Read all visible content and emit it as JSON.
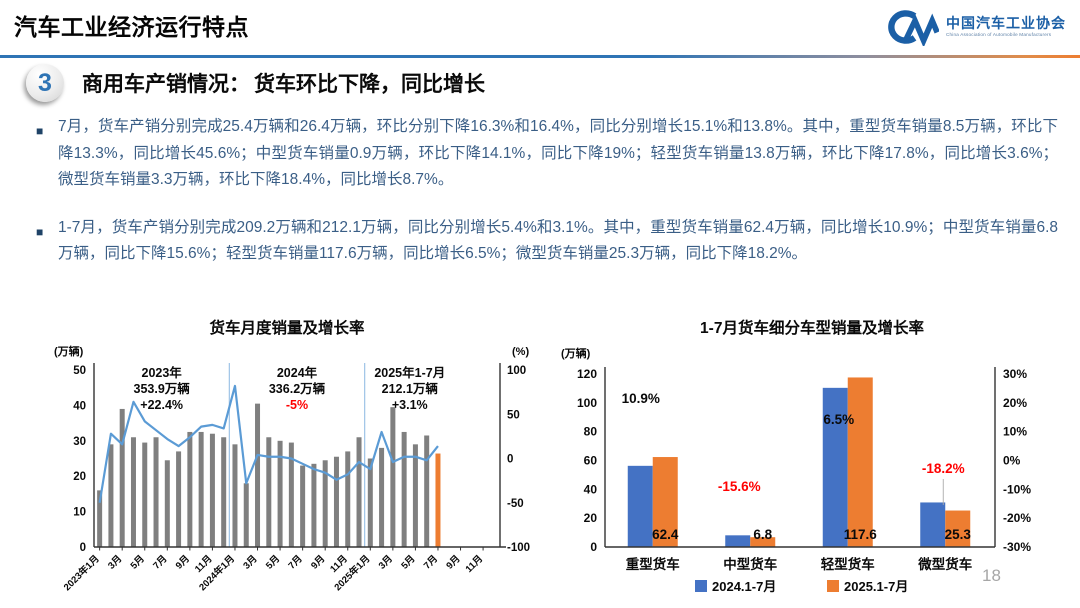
{
  "header": {
    "title": "汽车工业经济运行特点",
    "logo": {
      "cn": "中国汽车工业协会",
      "en": "China Association of Automobile Manufacturers"
    }
  },
  "section": {
    "number": "3",
    "heading": "商用车产销情况：",
    "subheading": "货车环比下降，同比增长"
  },
  "bullets": [
    "7月，货车产销分别完成25.4万辆和26.4万辆，环比分别下降16.3%和16.4%，同比分别增长15.1%和13.8%。其中，重型货车销量8.5万辆，环比下降13.3%，同比增长45.6%；中型货车销量0.9万辆，环比下降14.1%，同比下降19%；轻型货车销量13.8万辆，环比下降17.8%，同比增长3.6%；微型货车销量3.3万辆，环比下降18.4%，同比增长8.7%。",
    "1-7月，货车产销分别完成209.2万辆和212.1万辆，同比分别增长5.4%和3.1%。其中，重型货车销量62.4万辆，同比增长10.9%；中型货车销量6.8万辆，同比下降15.6%；轻型货车销量117.6万辆，同比增长6.5%；微型货车销量25.3万辆，同比下降18.2%。"
  ],
  "page_number": "18",
  "colors": {
    "accent_blue": "#2E74B5",
    "body_text": "#3A5E86",
    "bar_gray": "#7F7F7F",
    "line_blue": "#5B9BD5",
    "bar_blue": "#4472C4",
    "bar_orange": "#ED7D31",
    "negative_red": "#FF0000",
    "divider_blue": "#9DC3E6"
  },
  "chart_data": [
    {
      "type": "bar+line",
      "title": "货车月度销量及增长率",
      "left_axis_label": "(万辆)",
      "right_axis_label": "(%)",
      "left_ylim": [
        0,
        50
      ],
      "left_ticks": [
        0,
        10,
        20,
        30,
        40,
        50
      ],
      "right_ylim": [
        -100,
        100
      ],
      "right_ticks": [
        100,
        50,
        0,
        -50,
        -100
      ],
      "x_tick_labels": [
        "2023年1月",
        "3月",
        "5月",
        "7月",
        "9月",
        "11月",
        "2024年1月",
        "3月",
        "5月",
        "7月",
        "9月",
        "11月",
        "2025年1月",
        "3月",
        "5月",
        "7月",
        "9月",
        "11月"
      ],
      "total_slots": 36,
      "bar_series": {
        "name": "月度销量(万辆)",
        "color": "#7F7F7F",
        "last_bar_color": "#ED7D31",
        "values": [
          16,
          29,
          39,
          31,
          29.5,
          31,
          24.5,
          27,
          32.5,
          32.5,
          32,
          31,
          29,
          18,
          40.5,
          31,
          30,
          29.5,
          23,
          23.5,
          24.5,
          25.5,
          27,
          31,
          25,
          28,
          39.5,
          32.5,
          29,
          31.5,
          26.4
        ]
      },
      "line_series": {
        "name": "同比增长率(%)",
        "color": "#5B9BD5",
        "values": [
          -50,
          28,
          16,
          64,
          42,
          32,
          22,
          14,
          24,
          36,
          38,
          34,
          82,
          -28,
          4,
          2,
          2,
          0,
          -6,
          -12,
          -16,
          -24,
          -18,
          -4,
          -12,
          30,
          -4,
          2,
          2,
          -2,
          14
        ]
      },
      "dividers_after_index": [
        11,
        23
      ],
      "annotations": [
        {
          "lines": [
            "2023年",
            "353.9万辆",
            "+22.4%"
          ],
          "line_colors": [
            "#0a0a0a",
            "#0a0a0a",
            "#0a0a0a"
          ]
        },
        {
          "lines": [
            "2024年",
            "336.2万辆",
            "-5%"
          ],
          "line_colors": [
            "#0a0a0a",
            "#0a0a0a",
            "#FF0000"
          ]
        },
        {
          "lines": [
            "2025年1-7月",
            "212.1万辆",
            "+3.1%"
          ],
          "line_colors": [
            "#0a0a0a",
            "#0a0a0a",
            "#0a0a0a"
          ]
        }
      ]
    },
    {
      "type": "grouped_bar",
      "title": "1-7月货车细分车型销量及增长率",
      "left_axis_label": "(万辆)",
      "left_ylim": [
        0,
        120
      ],
      "left_ticks": [
        0,
        20,
        40,
        60,
        80,
        100,
        120
      ],
      "right_ticks": [
        "30%",
        "20%",
        "10%",
        "0%",
        "-10%",
        "-20%",
        "-30%"
      ],
      "categories": [
        "重型货车",
        "中型货车",
        "轻型货车",
        "微型货车"
      ],
      "series": [
        {
          "name": "2024.1-7月",
          "color": "#4472C4",
          "values": [
            56.3,
            8.1,
            110.4,
            30.9
          ]
        },
        {
          "name": "2025.1-7月",
          "color": "#ED7D31",
          "values": [
            62.4,
            6.8,
            117.6,
            25.3
          ]
        }
      ],
      "value_labels": [
        "62.4",
        "6.8",
        "117.6",
        "25.3"
      ],
      "growth_labels": [
        {
          "text": "10.9%",
          "color": "#0a0a0a"
        },
        {
          "text": "-15.6%",
          "color": "#FF0000"
        },
        {
          "text": "6.5%",
          "color": "#0a0a0a"
        },
        {
          "text": "-18.2%",
          "color": "#FF0000"
        }
      ],
      "legend": [
        "2024.1-7月",
        "2025.1-7月"
      ]
    }
  ]
}
